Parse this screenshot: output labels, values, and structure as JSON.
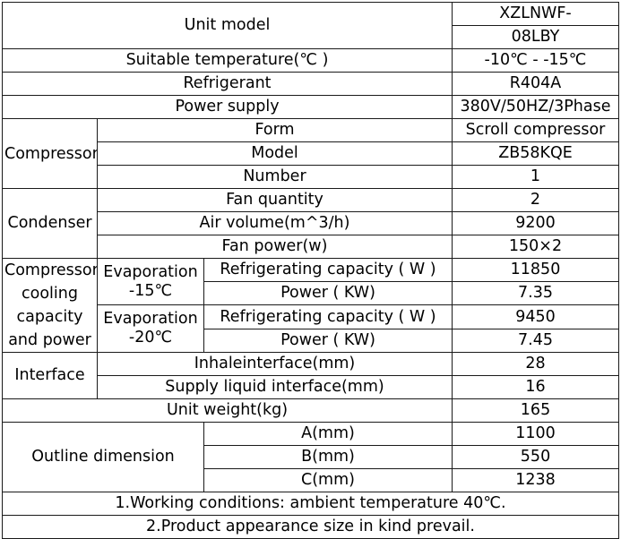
{
  "unit_model": {
    "label": "Unit model",
    "value_line1": "XZLNWF-",
    "value_line2": "08LBY"
  },
  "suitable_temperature": {
    "label": "Suitable temperature(℃ )",
    "value": "-10℃ - -15℃"
  },
  "refrigerant": {
    "label": "Refrigerant",
    "value": "R404A"
  },
  "power_supply": {
    "label": "Power supply",
    "value": "380V/50HZ/3Phase"
  },
  "compressor": {
    "label": "Compressor",
    "form": {
      "label": "Form",
      "value": "Scroll compressor"
    },
    "model": {
      "label": "Model",
      "value": "ZB58KQE"
    },
    "number": {
      "label": "Number",
      "value": "1"
    }
  },
  "condenser": {
    "label": "Condenser",
    "fan_quantity": {
      "label": "Fan quantity",
      "value": "2"
    },
    "air_volume": {
      "label": "Air volume(m^3/h)",
      "value": "9200"
    },
    "fan_power": {
      "label": "Fan power(w)",
      "value": "150×2"
    }
  },
  "cooling": {
    "label": "Compressor cooling capacity and power",
    "evap1": {
      "label_line1": "Evaporation",
      "label_line2": "-15℃",
      "capacity": {
        "label": "Refrigerating capacity ( W )",
        "value": "11850"
      },
      "power": {
        "label": "Power ( KW)",
        "value": "7.35"
      }
    },
    "evap2": {
      "label_line1": "Evaporation",
      "label_line2": "-20℃",
      "capacity": {
        "label": "Refrigerating capacity ( W )",
        "value": "9450"
      },
      "power": {
        "label": "Power ( KW)",
        "value": "7.45"
      }
    }
  },
  "interface": {
    "label": "Interface",
    "inhale": {
      "label": "Inhaleinterface(mm)",
      "value": "28"
    },
    "supply": {
      "label": "Supply liquid interface(mm)",
      "value": "16"
    }
  },
  "unit_weight": {
    "label": "Unit weight(kg)",
    "value": "165"
  },
  "outline": {
    "label": "Outline dimension",
    "a": {
      "label": "A(mm)",
      "value": "1100"
    },
    "b": {
      "label": "B(mm)",
      "value": "550"
    },
    "c": {
      "label": "C(mm)",
      "value": "1238"
    }
  },
  "notes": [
    "1.Working conditions: ambient temperature 40℃.",
    "2.Product appearance size in kind prevail."
  ]
}
